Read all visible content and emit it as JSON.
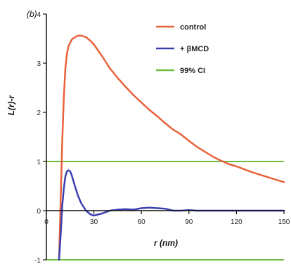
{
  "chart_data": {
    "type": "line",
    "panel_label": "(b)",
    "xlabel": "r (nm)",
    "ylabel": "L(r)-r",
    "xlim": [
      0,
      150
    ],
    "ylim": [
      -1,
      4
    ],
    "x_ticks": [
      0,
      30,
      60,
      90,
      120,
      150
    ],
    "y_ticks": [
      -1,
      0,
      1,
      2,
      3,
      4
    ],
    "legend_position": "top-right",
    "series": [
      {
        "name": "control",
        "color": "#e8623a",
        "x": [
          8,
          9,
          10,
          11,
          12,
          13,
          14,
          16,
          18,
          20,
          22,
          25,
          28,
          30,
          35,
          40,
          45,
          50,
          55,
          60,
          65,
          70,
          75,
          78,
          80,
          85,
          90,
          95,
          100,
          105,
          110,
          115,
          120,
          125,
          130,
          135,
          140,
          145,
          150
        ],
        "y": [
          -1.0,
          0.2,
          1.4,
          2.3,
          2.9,
          3.2,
          3.35,
          3.48,
          3.53,
          3.56,
          3.56,
          3.53,
          3.45,
          3.38,
          3.15,
          2.9,
          2.7,
          2.52,
          2.35,
          2.2,
          2.05,
          1.92,
          1.78,
          1.7,
          1.65,
          1.55,
          1.42,
          1.3,
          1.2,
          1.1,
          1.02,
          0.95,
          0.9,
          0.84,
          0.78,
          0.73,
          0.68,
          0.63,
          0.58
        ]
      },
      {
        "name": "+ βMCD",
        "color": "#3b3fb0",
        "x": [
          8,
          9,
          10,
          11,
          12,
          13,
          14,
          15,
          16,
          18,
          20,
          22,
          25,
          28,
          30,
          35,
          40,
          45,
          50,
          55,
          60,
          65,
          70,
          75,
          80,
          85,
          90,
          95,
          100,
          110,
          120,
          130,
          140,
          150
        ],
        "y": [
          -1.0,
          -0.5,
          0.1,
          0.45,
          0.7,
          0.8,
          0.82,
          0.8,
          0.72,
          0.5,
          0.3,
          0.15,
          0.0,
          -0.08,
          -0.1,
          -0.06,
          0.0,
          0.02,
          0.03,
          0.02,
          0.05,
          0.06,
          0.05,
          0.04,
          0.0,
          0.0,
          0.01,
          0.0,
          0.0,
          0.0,
          0.0,
          0.0,
          0.0,
          0.0
        ]
      }
    ],
    "reference_lines": {
      "name": "99% CI",
      "color": "#6dbb3f",
      "y_values": [
        1.0,
        -1.0
      ]
    }
  }
}
